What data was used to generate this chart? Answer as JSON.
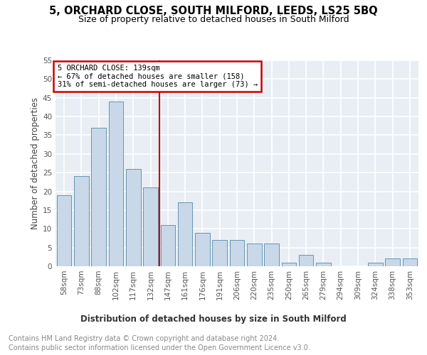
{
  "title": "5, ORCHARD CLOSE, SOUTH MILFORD, LEEDS, LS25 5BQ",
  "subtitle": "Size of property relative to detached houses in South Milford",
  "xlabel": "Distribution of detached houses by size in South Milford",
  "ylabel": "Number of detached properties",
  "categories": [
    "58sqm",
    "73sqm",
    "88sqm",
    "102sqm",
    "117sqm",
    "132sqm",
    "147sqm",
    "161sqm",
    "176sqm",
    "191sqm",
    "206sqm",
    "220sqm",
    "235sqm",
    "250sqm",
    "265sqm",
    "279sqm",
    "294sqm",
    "309sqm",
    "324sqm",
    "338sqm",
    "353sqm"
  ],
  "values": [
    19,
    24,
    37,
    44,
    26,
    21,
    11,
    17,
    9,
    7,
    7,
    6,
    6,
    1,
    3,
    1,
    0,
    0,
    1,
    2,
    2
  ],
  "bar_color": "#c8d8e8",
  "bar_edge_color": "#5588aa",
  "property_line_x": 5.5,
  "annotation_line1": "5 ORCHARD CLOSE: 139sqm",
  "annotation_line2": "← 67% of detached houses are smaller (158)",
  "annotation_line3": "31% of semi-detached houses are larger (73) →",
  "annotation_box_color": "#cc0000",
  "footer_line1": "Contains HM Land Registry data © Crown copyright and database right 2024.",
  "footer_line2": "Contains public sector information licensed under the Open Government Licence v3.0.",
  "ylim": [
    0,
    55
  ],
  "yticks": [
    0,
    5,
    10,
    15,
    20,
    25,
    30,
    35,
    40,
    45,
    50,
    55
  ],
  "background_color": "#e8eef4",
  "grid_color": "#ffffff",
  "title_fontsize": 10.5,
  "subtitle_fontsize": 9,
  "axis_label_fontsize": 8.5,
  "tick_fontsize": 7.5,
  "footer_fontsize": 7
}
